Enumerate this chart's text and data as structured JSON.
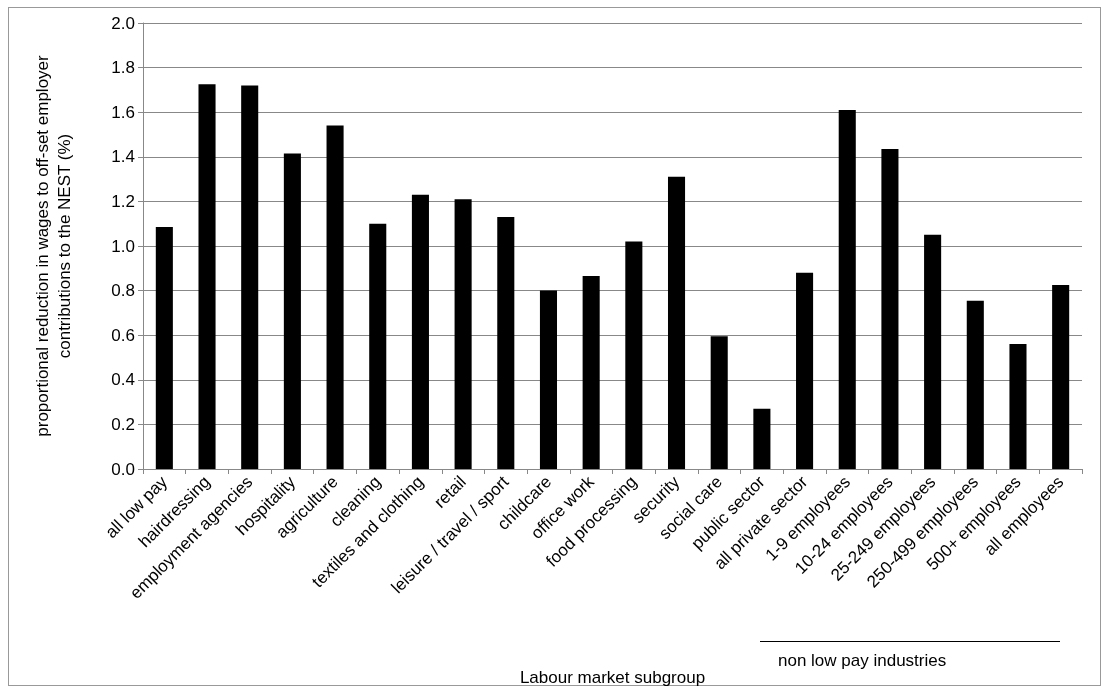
{
  "chart_data": {
    "type": "bar",
    "xlabel": "Labour market subgroup",
    "ylabel": "proportional reduction in wages to off-set employer\ncontributions to the NEST (%)",
    "categories": [
      "all low pay",
      "hairdressing",
      "employment agencies",
      "hospitality",
      "agriculture",
      "cleaning",
      "textiles and clothing",
      "retail",
      "leisure / travel / sport",
      "childcare",
      "office work",
      "food processing",
      "security",
      "social care",
      "public sector",
      "all private sector",
      "1-9 employees",
      "10-24 employees",
      "25-249 employees",
      "250-499 employees",
      "500+ employees",
      "all employees"
    ],
    "values": [
      1.085,
      1.725,
      1.72,
      1.415,
      1.54,
      1.1,
      1.23,
      1.21,
      1.13,
      0.8,
      0.865,
      1.02,
      1.31,
      0.595,
      0.27,
      0.88,
      1.61,
      1.435,
      1.05,
      0.755,
      0.56,
      0.825
    ],
    "color": "#000000",
    "ylim": [
      0,
      2
    ],
    "yticks": [
      {
        "value": 0,
        "label": "0.0"
      },
      {
        "value": 0.2,
        "label": "0.2"
      },
      {
        "value": 0.4,
        "label": "0.4"
      },
      {
        "value": 0.6,
        "label": "0.6"
      },
      {
        "value": 0.8,
        "label": "0.8"
      },
      {
        "value": 1,
        "label": "1.0"
      },
      {
        "value": 1.2,
        "label": "1.2"
      },
      {
        "value": 1.4,
        "label": "1.4"
      },
      {
        "value": 1.6,
        "label": "1.6"
      },
      {
        "value": 1.8,
        "label": "1.8"
      },
      {
        "value": 2,
        "label": "2.0"
      }
    ],
    "grid": "y",
    "annotations": [
      "non low pay industries"
    ]
  }
}
